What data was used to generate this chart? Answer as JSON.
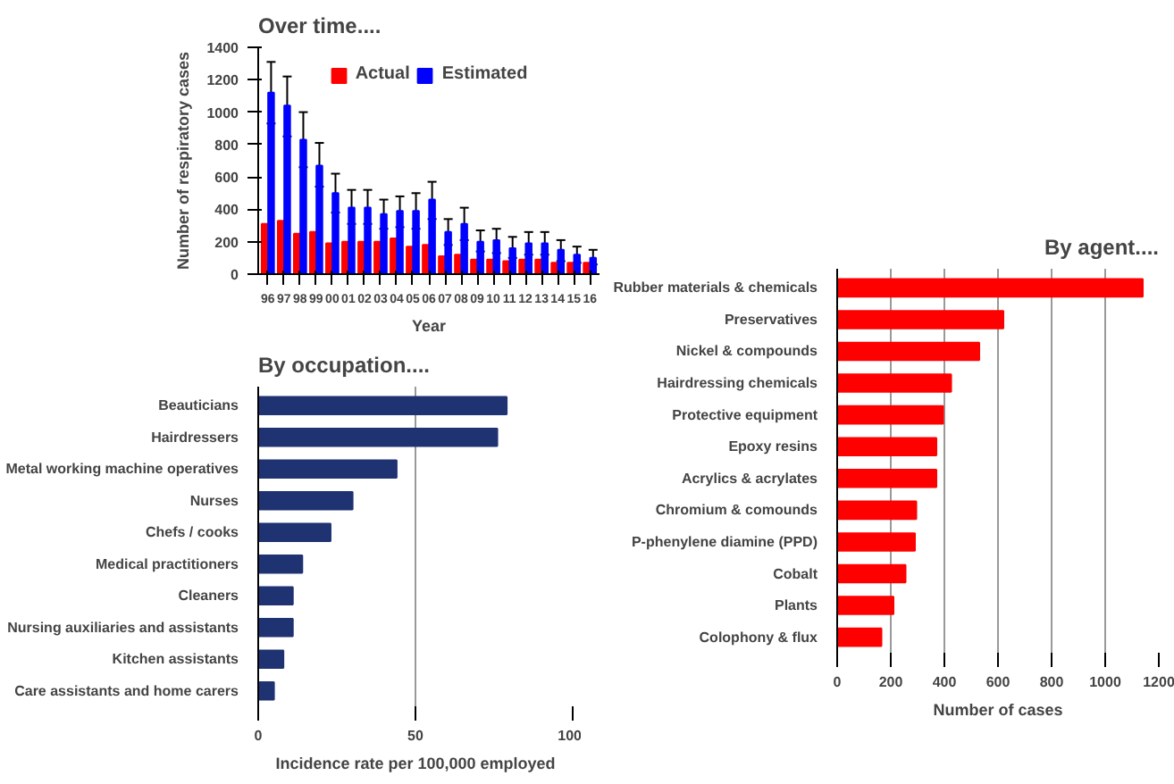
{
  "chart_data": [
    {
      "type": "bar",
      "title": "Over time....",
      "xlabel": "Year",
      "ylabel": "Number of respiratory cases",
      "categories": [
        "96",
        "97",
        "98",
        "99",
        "00",
        "01",
        "02",
        "03",
        "04",
        "05",
        "06",
        "07",
        "08",
        "09",
        "10",
        "11",
        "12",
        "13",
        "14",
        "15",
        "16"
      ],
      "series": [
        {
          "name": "Actual",
          "color": "#ff0000",
          "values": [
            310,
            330,
            250,
            260,
            190,
            200,
            200,
            200,
            220,
            170,
            180,
            110,
            120,
            90,
            90,
            80,
            90,
            90,
            70,
            70,
            70
          ]
        },
        {
          "name": "Estimated",
          "color": "#0000ff",
          "values": [
            1120,
            1040,
            830,
            670,
            500,
            410,
            410,
            370,
            390,
            390,
            460,
            260,
            310,
            200,
            210,
            160,
            190,
            190,
            150,
            120,
            100
          ],
          "errors": [
            [
              930,
              1310
            ],
            [
              850,
              1220
            ],
            [
              660,
              1000
            ],
            [
              540,
              810
            ],
            [
              380,
              620
            ],
            [
              310,
              520
            ],
            [
              310,
              520
            ],
            [
              280,
              460
            ],
            [
              290,
              480
            ],
            [
              280,
              500
            ],
            [
              340,
              570
            ],
            [
              180,
              340
            ],
            [
              210,
              410
            ],
            [
              140,
              270
            ],
            [
              130,
              280
            ],
            [
              100,
              230
            ],
            [
              120,
              260
            ],
            [
              120,
              260
            ],
            [
              80,
              210
            ],
            [
              70,
              170
            ],
            [
              60,
              150
            ]
          ]
        }
      ],
      "ylim": [
        0,
        1400
      ],
      "yticks": [
        0,
        200,
        400,
        600,
        800,
        1000,
        1200,
        1400
      ],
      "grid": false,
      "legend": "top"
    },
    {
      "type": "bar",
      "orientation": "horizontal",
      "title": "By occupation....",
      "xlabel": "Incidence rate per 100,000 employed",
      "categories": [
        "Beauticians",
        "Hairdressers",
        "Metal working machine operatives",
        "Nurses",
        "Chefs / cooks",
        "Medical practitioners",
        "Cleaners",
        "Nursing auxiliaries and assistants",
        "Kitchen assistants",
        "Care assistants and home carers"
      ],
      "values": [
        79,
        76,
        44,
        30,
        23,
        14,
        11,
        11,
        8,
        5
      ],
      "color": "#1f3272",
      "xlim": [
        0,
        100
      ],
      "xticks": [
        0,
        50,
        100
      ],
      "grid": "x"
    },
    {
      "type": "bar",
      "orientation": "horizontal",
      "title": "By agent....",
      "xlabel": "Number of cases",
      "categories": [
        "Rubber materials & chemicals",
        "Preservatives",
        "Nickel & compounds",
        "Hairdressing chemicals",
        "Protective equipment",
        "Epoxy resins",
        "Acrylics & acrylates",
        "Chromium & comounds",
        "P-phenylene diamine (PPD)",
        "Cobalt",
        "Plants",
        "Colophony & flux"
      ],
      "values": [
        1140,
        620,
        530,
        425,
        395,
        370,
        370,
        295,
        290,
        255,
        210,
        165
      ],
      "color": "#ff0000",
      "xlim": [
        0,
        1200
      ],
      "xticks": [
        0,
        200,
        400,
        600,
        800,
        1000,
        1200
      ],
      "grid": "x"
    }
  ]
}
